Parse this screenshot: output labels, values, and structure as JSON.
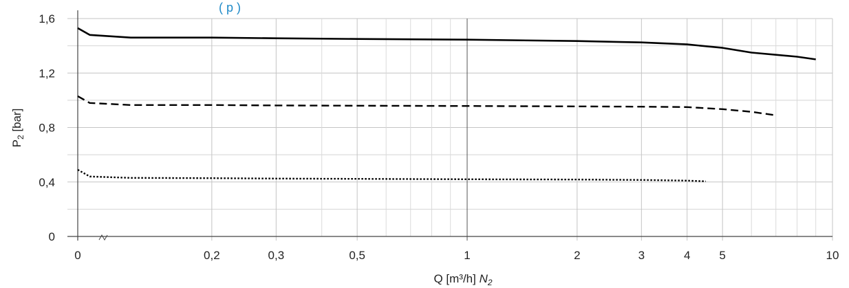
{
  "header_fragment": "(         p          )",
  "chart_data": {
    "type": "line",
    "title": "",
    "xlabel": "Q [m³/h]",
    "xlabel_gas": "N",
    "xlabel_gas_sub": "2",
    "ylabel": "P",
    "ylabel_sub": "2",
    "ylabel_unit": " [bar]",
    "x_scale": "broken-log (0–0.1 linear segment, then log 0.1–10)",
    "xlim": [
      0,
      10
    ],
    "ylim": [
      0,
      1.6
    ],
    "x_ticks": [
      {
        "value": 0,
        "label": "0"
      },
      {
        "value": 0.2,
        "label": "0,2"
      },
      {
        "value": 0.3,
        "label": "0,3"
      },
      {
        "value": 0.5,
        "label": "0,5"
      },
      {
        "value": 1,
        "label": "1"
      },
      {
        "value": 2,
        "label": "2"
      },
      {
        "value": 3,
        "label": "3"
      },
      {
        "value": 4,
        "label": "4"
      },
      {
        "value": 5,
        "label": "5"
      },
      {
        "value": 10,
        "label": "10"
      }
    ],
    "x_minor_gridlines": [
      0.4,
      0.6,
      0.7,
      0.8,
      0.9,
      6,
      7,
      8,
      9
    ],
    "y_ticks": [
      {
        "value": 0,
        "label": "0"
      },
      {
        "value": 0.4,
        "label": "0,4"
      },
      {
        "value": 0.8,
        "label": "0,8"
      },
      {
        "value": 1.2,
        "label": "1,2"
      },
      {
        "value": 1.6,
        "label": "1,6"
      }
    ],
    "y_minor_gridlines": [
      0.2,
      0.6,
      1.0,
      1.4
    ],
    "grid": true,
    "series": [
      {
        "style": "solid",
        "color": "#000000",
        "x": [
          0,
          0.05,
          0.12,
          0.2,
          0.3,
          0.5,
          1,
          2,
          3,
          4,
          5,
          6,
          8,
          9
        ],
        "y": [
          1.53,
          1.48,
          1.46,
          1.46,
          1.455,
          1.45,
          1.445,
          1.435,
          1.425,
          1.41,
          1.385,
          1.35,
          1.32,
          1.3
        ]
      },
      {
        "style": "dashed",
        "color": "#000000",
        "x": [
          0,
          0.05,
          0.12,
          0.2,
          0.3,
          0.5,
          1,
          2,
          3,
          4,
          5,
          6,
          7
        ],
        "y": [
          1.03,
          0.98,
          0.965,
          0.965,
          0.962,
          0.96,
          0.958,
          0.955,
          0.953,
          0.95,
          0.935,
          0.915,
          0.89
        ]
      },
      {
        "style": "dotted",
        "color": "#000000",
        "x": [
          0,
          0.05,
          0.12,
          0.2,
          0.3,
          0.5,
          1,
          2,
          3,
          4,
          4.5
        ],
        "y": [
          0.49,
          0.44,
          0.43,
          0.428,
          0.425,
          0.423,
          0.42,
          0.418,
          0.415,
          0.41,
          0.405
        ]
      }
    ]
  }
}
